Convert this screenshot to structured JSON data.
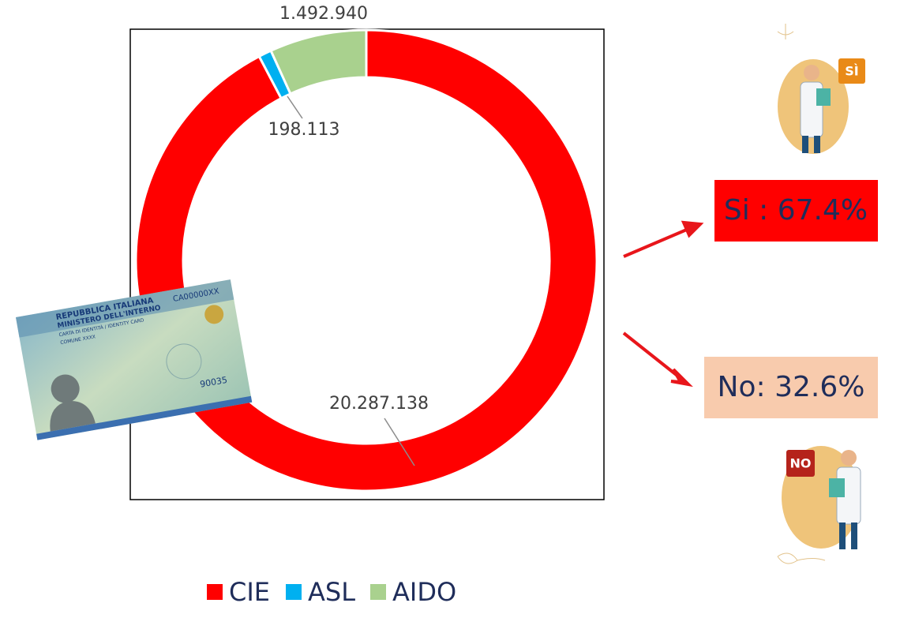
{
  "chart_data": {
    "type": "donut",
    "categories": [
      "CIE",
      "ASL",
      "AIDO"
    ],
    "values": [
      20287138,
      198113,
      1492940
    ],
    "value_labels": [
      "20.287.138",
      "198.113",
      "1.492.940"
    ],
    "colors": [
      "#ff0000",
      "#00b0f0",
      "#a9d18e"
    ]
  },
  "outcomes": [
    {
      "label": "Si : 67.4%"
    },
    {
      "label": "No: 32.6%"
    }
  ],
  "card": {
    "lines": [
      "REPUBBLICA ITALIANA",
      "MINISTERO DELL'INTERNO",
      "CARTA DI IDENTITÀ / IDENTITY CARD",
      "COMUNE XXXX",
      "CA00000XX",
      "90035"
    ]
  },
  "badges": [
    "SÌ",
    "NO"
  ]
}
